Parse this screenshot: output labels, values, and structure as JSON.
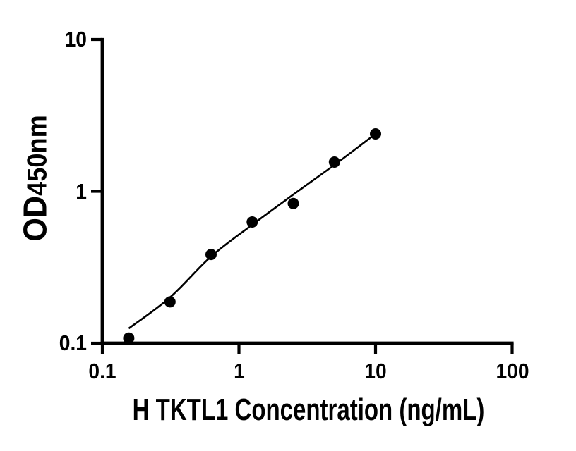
{
  "figure": {
    "background_color": "#ffffff",
    "ink_color": "#000000"
  },
  "chart_data": {
    "type": "scatter",
    "title": "",
    "xlabel": "H TKTL1 Concentration (ng/mL)",
    "ylabel": "OD450nm",
    "ylabel_prefix": "OD",
    "ylabel_subscript": "450nm",
    "x_scale": "log10",
    "y_scale": "log10",
    "xlim": [
      0.1,
      100
    ],
    "ylim": [
      0.1,
      10
    ],
    "grid": false,
    "legend": null,
    "x_ticks": [
      {
        "value": 0.1,
        "label": "0.1"
      },
      {
        "value": 1,
        "label": "1"
      },
      {
        "value": 10,
        "label": "10"
      },
      {
        "value": 100,
        "label": "100"
      }
    ],
    "y_ticks": [
      {
        "value": 0.1,
        "label": "0.1"
      },
      {
        "value": 1,
        "label": "1"
      },
      {
        "value": 10,
        "label": "10"
      }
    ],
    "series": [
      {
        "name": "standard-points",
        "type": "scatter",
        "marker": "filled-circle",
        "color": "#000000",
        "x": [
          0.156,
          0.3125,
          0.625,
          1.25,
          2.5,
          5,
          10
        ],
        "y": [
          0.108,
          0.187,
          0.384,
          0.628,
          0.832,
          1.558,
          2.389
        ]
      },
      {
        "name": "fitted-curve",
        "type": "line",
        "color": "#000000",
        "x": [
          0.156,
          0.3125,
          0.625,
          1.25,
          2.5,
          5,
          10
        ],
        "y": [
          0.125,
          0.2,
          0.372,
          0.602,
          0.952,
          1.493,
          2.389
        ]
      }
    ]
  }
}
